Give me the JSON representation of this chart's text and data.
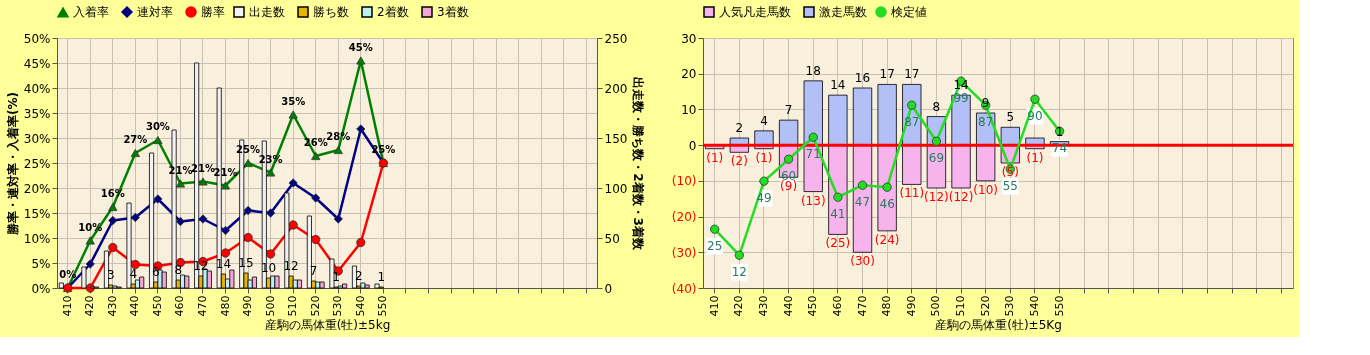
{
  "chart_data": [
    {
      "type": "bar",
      "categories": [
        "410",
        "420",
        "430",
        "440",
        "450",
        "460",
        "470",
        "480",
        "490",
        "500",
        "510",
        "520",
        "530",
        "540",
        "550",
        null,
        null,
        null,
        null,
        null,
        null,
        null,
        null,
        null
      ],
      "xlabel": "産駒の馬体重(牡)±5kg",
      "ylabel": "勝率・連対率・入着率(%)",
      "y2label": "出走数・勝ち数・2着数・3着数",
      "ylim": [
        0,
        50
      ],
      "yticks": [
        {
          "value": 0,
          "label": "0%"
        },
        {
          "value": 5,
          "label": "5%"
        },
        {
          "value": 10,
          "label": "10%"
        },
        {
          "value": 15,
          "label": "15%"
        },
        {
          "value": 20,
          "label": "20%"
        },
        {
          "value": 25,
          "label": "25%"
        },
        {
          "value": 30,
          "label": "30%"
        },
        {
          "value": 35,
          "label": "35%"
        },
        {
          "value": 40,
          "label": "40%"
        },
        {
          "value": 45,
          "label": "45%"
        },
        {
          "value": 50,
          "label": "50%"
        }
      ],
      "y2lim": [
        0,
        250
      ],
      "y2ticks": [
        0,
        50,
        100,
        150,
        200,
        250
      ],
      "grid": true,
      "legend": "top",
      "series": [
        {
          "name": "出走数",
          "axis": "y2",
          "color": "#f2f2f2",
          "values": [
            5,
            21,
            37,
            85,
            135,
            158,
            225,
            200,
            148,
            147,
            95,
            72,
            29,
            22,
            4,
            null,
            null,
            null,
            null,
            null,
            null,
            null,
            null,
            null
          ]
        },
        {
          "name": "勝ち数",
          "axis": "y2",
          "color": "#e6b400",
          "values": [
            0,
            0,
            3,
            4,
            6,
            8,
            12,
            14,
            15,
            10,
            12,
            7,
            1,
            2,
            1,
            null,
            null,
            null,
            null,
            null,
            null,
            null,
            null,
            null
          ],
          "value_labels": [
            null,
            null,
            "3",
            "4",
            "6",
            "8",
            "12",
            "14",
            "15",
            "10",
            "12",
            "7",
            "1",
            "2",
            "1",
            null,
            null,
            null,
            null,
            null,
            null,
            null,
            null,
            null
          ]
        },
        {
          "name": "2着数",
          "axis": "y2",
          "color": "#b9f2f2",
          "values": [
            0,
            1,
            2,
            8,
            18,
            13,
            19,
            9,
            8,
            12,
            8,
            6,
            2,
            5,
            0,
            null,
            null,
            null,
            null,
            null,
            null,
            null,
            null,
            null
          ]
        },
        {
          "name": "3着数",
          "axis": "y2",
          "color": "#f4a6d7",
          "values": [
            0,
            1,
            1,
            11,
            16,
            12,
            17,
            18,
            11,
            12,
            8,
            6,
            4,
            3,
            0,
            null,
            null,
            null,
            null,
            null,
            null,
            null,
            null,
            null
          ]
        },
        {
          "name": "入着率",
          "type": "line",
          "color": "#008000",
          "marker": "triangle",
          "values": [
            0,
            9.5,
            16.2,
            27,
            29.6,
            20.9,
            21.3,
            20.5,
            25,
            23.1,
            34.7,
            26.4,
            27.6,
            45.5,
            25,
            null,
            null,
            null,
            null,
            null,
            null,
            null,
            null,
            null
          ],
          "value_labels": [
            "0%",
            "10%",
            "16%",
            "27%",
            "30%",
            "21%",
            "21%",
            "21%",
            "25%",
            "23%",
            "35%",
            "26%",
            "28%",
            "45%",
            "25%",
            null,
            null,
            null,
            null,
            null,
            null,
            null,
            null,
            null
          ]
        },
        {
          "name": "連対率",
          "type": "line",
          "color": "#000080",
          "marker": "diamond",
          "values": [
            0,
            4.8,
            13.5,
            14.1,
            17.8,
            13.3,
            13.8,
            11.5,
            15.5,
            15,
            21,
            18,
            13.8,
            31.8,
            25,
            null,
            null,
            null,
            null,
            null,
            null,
            null,
            null,
            null
          ]
        },
        {
          "name": "勝率",
          "type": "line",
          "color": "#ff0000",
          "marker": "circle",
          "values": [
            0,
            0,
            8.1,
            4.7,
            4.4,
            5.1,
            5.3,
            7,
            10.1,
            6.8,
            12.6,
            9.7,
            3.4,
            9.1,
            25,
            null,
            null,
            null,
            null,
            null,
            null,
            null,
            null,
            null
          ]
        }
      ]
    },
    {
      "type": "bar",
      "stacked": true,
      "categories": [
        "410",
        "420",
        "430",
        "440",
        "450",
        "460",
        "470",
        "480",
        "490",
        "500",
        "510",
        "520",
        "530",
        "540",
        "550",
        null,
        null,
        null,
        null,
        null,
        null,
        null,
        null,
        null
      ],
      "xlabel": "産駒の馬体重(牡)±5Kg",
      "ylim": [
        -40,
        30
      ],
      "yticks": [
        {
          "value": -40,
          "label": "(40)"
        },
        {
          "value": -30,
          "label": "(30)"
        },
        {
          "value": -20,
          "label": "(20)"
        },
        {
          "value": -10,
          "label": "(10)"
        },
        0,
        10,
        20,
        30
      ],
      "y2lim": [
        -4.4,
        120.6
      ],
      "grid": true,
      "legend": "top",
      "ref_lines": [
        {
          "axis": "y",
          "value": 0,
          "color": "#ff0000"
        }
      ],
      "series": [
        {
          "name": "人気凡走馬数",
          "color": "#f7b3ec",
          "values": [
            -1,
            -2,
            -1,
            -9,
            -13,
            -25,
            -30,
            -24,
            -11,
            -12,
            -12,
            -10,
            -5,
            -1,
            null,
            null,
            null,
            null,
            null,
            null,
            null,
            null,
            null,
            null
          ],
          "value_labels": [
            "(1)",
            "(2)",
            "(1)",
            "(9)",
            "(13)",
            "(25)",
            "(30)",
            "(24)",
            "(11)",
            "(12)",
            "(12)",
            "(10)",
            "(5)",
            "(1)",
            null,
            null,
            null,
            null,
            null,
            null,
            null,
            null,
            null,
            null
          ]
        },
        {
          "name": "激走馬数",
          "color": "#b3bff7",
          "values": [
            null,
            2,
            4,
            7,
            18,
            14,
            16,
            17,
            17,
            8,
            14,
            9,
            5,
            2,
            1,
            null,
            null,
            null,
            null,
            null,
            null,
            null,
            null,
            null
          ],
          "value_labels": [
            null,
            "2",
            "4",
            "7",
            "18",
            "14",
            "16",
            "17",
            "17",
            "8",
            "14",
            "9",
            "5",
            null,
            "1",
            null,
            null,
            null,
            null,
            null,
            null,
            null,
            null,
            null
          ]
        },
        {
          "name": "検定値",
          "type": "line",
          "axis": "y2",
          "color": "#22dd22",
          "marker": "circle",
          "values": [
            25,
            12,
            49,
            60,
            71,
            41,
            47,
            46,
            87,
            69,
            99,
            87,
            55,
            90,
            74,
            null,
            null,
            null,
            null,
            null,
            null,
            null,
            null,
            null
          ],
          "value_labels": [
            "25",
            "12",
            "49",
            "60",
            "71",
            "41",
            "47",
            "46",
            "87",
            "69",
            "99",
            "87",
            "55",
            "90",
            "74",
            null,
            null,
            null,
            null,
            null,
            null,
            null,
            null,
            null
          ]
        }
      ]
    }
  ]
}
